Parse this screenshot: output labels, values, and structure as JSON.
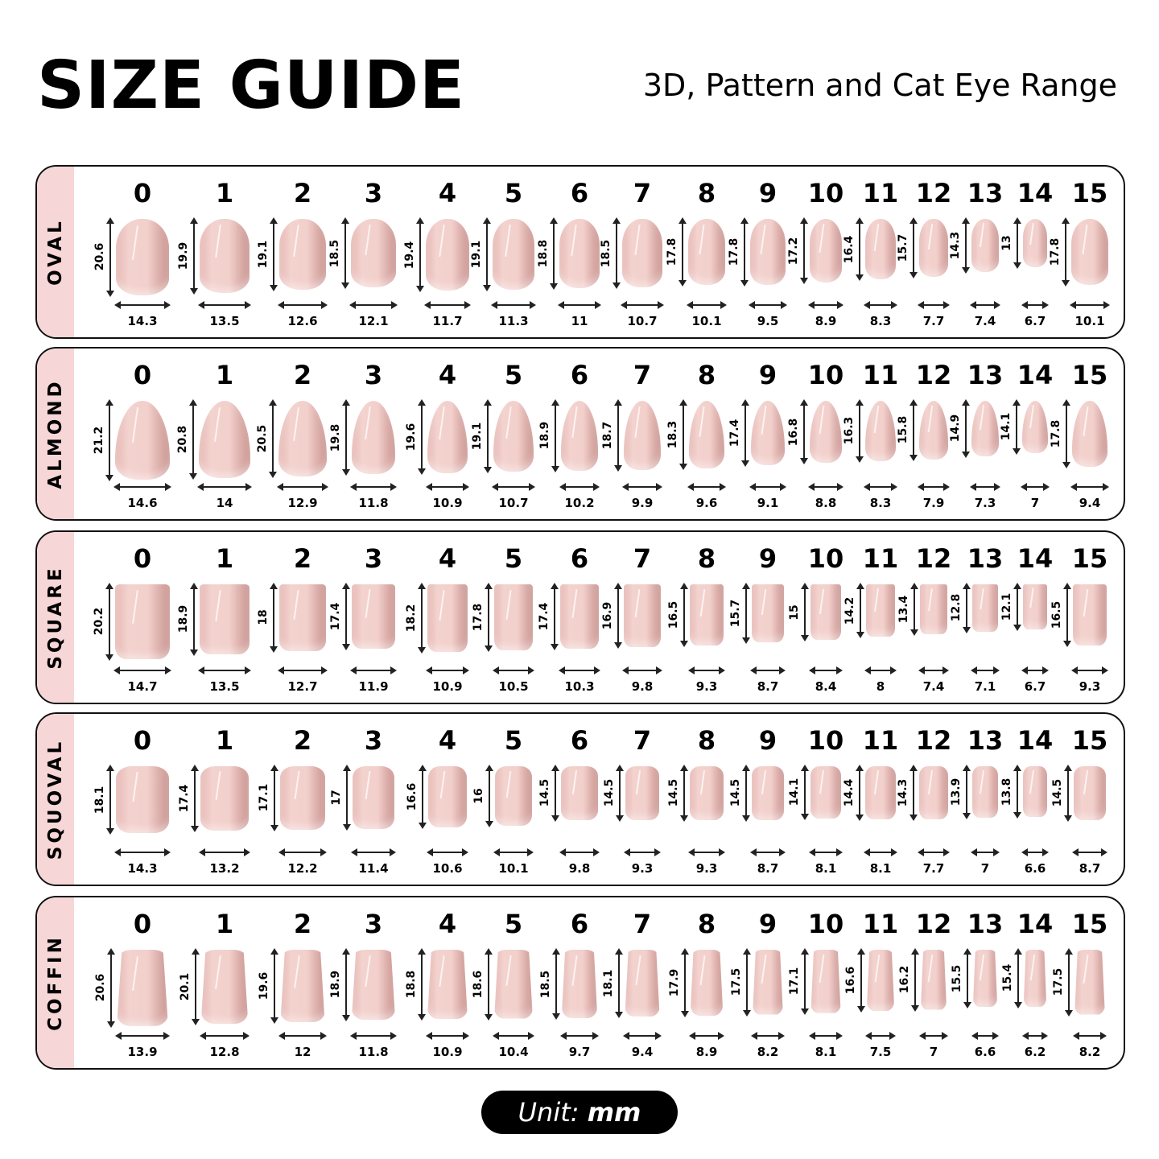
{
  "header": {
    "title": "SIZE GUIDE",
    "subtitle": "3D, Pattern and Cat Eye Range"
  },
  "sizes": [
    "0",
    "1",
    "2",
    "3",
    "4",
    "5",
    "6",
    "7",
    "8",
    "9",
    "10",
    "11",
    "12",
    "13",
    "14",
    "15"
  ],
  "rows": [
    {
      "shape": "OVAL",
      "lengths": [
        "20.6",
        "19.9",
        "19.1",
        "18.5",
        "19.4",
        "19.1",
        "18.8",
        "18.5",
        "17.8",
        "17.8",
        "17.2",
        "16.4",
        "15.7",
        "14.3",
        "13",
        "17.8"
      ],
      "widths": [
        "14.3",
        "13.5",
        "12.6",
        "12.1",
        "11.7",
        "11.3",
        "11",
        "10.7",
        "10.1",
        "9.5",
        "8.9",
        "8.3",
        "7.7",
        "7.4",
        "6.7",
        "10.1"
      ]
    },
    {
      "shape": "ALMOND",
      "lengths": [
        "21.2",
        "20.8",
        "20.5",
        "19.8",
        "19.6",
        "19.1",
        "18.9",
        "18.7",
        "18.3",
        "17.4",
        "16.8",
        "16.3",
        "15.8",
        "14.9",
        "14.1",
        "17.8"
      ],
      "widths": [
        "14.6",
        "14",
        "12.9",
        "11.8",
        "10.9",
        "10.7",
        "10.2",
        "9.9",
        "9.6",
        "9.1",
        "8.8",
        "8.3",
        "7.9",
        "7.3",
        "7",
        "9.4"
      ]
    },
    {
      "shape": "SQUARE",
      "lengths": [
        "20.2",
        "18.9",
        "18",
        "17.4",
        "18.2",
        "17.8",
        "17.4",
        "16.9",
        "16.5",
        "15.7",
        "15",
        "14.2",
        "13.4",
        "12.8",
        "12.1",
        "16.5"
      ],
      "widths": [
        "14.7",
        "13.5",
        "12.7",
        "11.9",
        "10.9",
        "10.5",
        "10.3",
        "9.8",
        "9.3",
        "8.7",
        "8.4",
        "8",
        "7.4",
        "7.1",
        "6.7",
        "9.3"
      ]
    },
    {
      "shape": "SQUOVAL",
      "lengths": [
        "18.1",
        "17.4",
        "17.1",
        "17",
        "16.6",
        "16",
        "14.5",
        "14.5",
        "14.5",
        "14.5",
        "14.1",
        "14.4",
        "14.3",
        "13.9",
        "13.8",
        "14.5"
      ],
      "widths": [
        "14.3",
        "13.2",
        "12.2",
        "11.4",
        "10.6",
        "10.1",
        "9.8",
        "9.3",
        "9.3",
        "8.7",
        "8.1",
        "8.1",
        "7.7",
        "7",
        "6.6",
        "8.7"
      ]
    },
    {
      "shape": "COFFIN",
      "lengths": [
        "20.6",
        "20.1",
        "19.6",
        "18.9",
        "18.8",
        "18.6",
        "18.5",
        "18.1",
        "17.9",
        "17.5",
        "17.1",
        "16.6",
        "16.2",
        "15.5",
        "15.4",
        "17.5"
      ],
      "widths": [
        "13.9",
        "12.8",
        "12",
        "11.8",
        "10.9",
        "10.4",
        "9.7",
        "9.4",
        "8.9",
        "8.2",
        "8.1",
        "7.5",
        "7",
        "6.6",
        "6.2",
        "8.2"
      ]
    }
  ],
  "unit": {
    "label": "Unit:",
    "value": "mm"
  },
  "colors": {
    "strip": "#f6d6d6",
    "nail": "#f2cfcb",
    "border": "#111111",
    "unit_badge": "#000000"
  }
}
